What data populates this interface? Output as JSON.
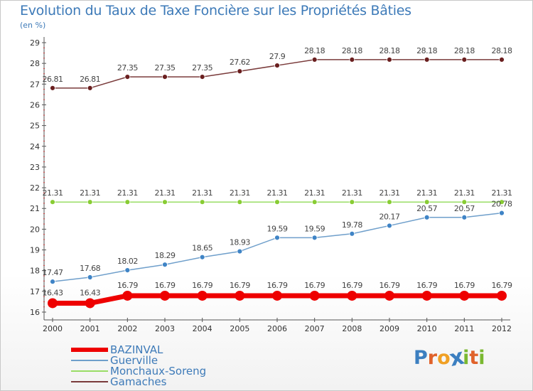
{
  "title": "Evolution du Taux de Taxe Foncière sur les Propriétés Bâties",
  "unit_label": "(en %)",
  "logo": {
    "text": "Proxiti",
    "letter_colors": [
      "#3c7fc0",
      "#e0622a",
      "#f0a024",
      "#3c7fc0",
      "#7ab830",
      "#e0622a",
      "#7ab830"
    ]
  },
  "colors": {
    "axis": "#555555",
    "grid_tick": "#d04040",
    "tick_label": "#333333",
    "value_label": "#444444",
    "legend_text": "#3d7ab8"
  },
  "chart_data": {
    "type": "line",
    "title": "Evolution du Taux de Taxe Foncière sur les Propriétés Bâties",
    "ylabel": "(en %)",
    "xlabel": "",
    "x": [
      "2000",
      "2001",
      "2002",
      "2003",
      "2004",
      "2005",
      "2006",
      "2007",
      "2008",
      "2009",
      "2010",
      "2011",
      "2012"
    ],
    "ylim": [
      16,
      29
    ],
    "yticks": [
      16,
      17,
      18,
      19,
      20,
      21,
      22,
      23,
      24,
      25,
      26,
      27,
      28,
      29
    ],
    "grid": false,
    "legend_position": "bottom-left",
    "series": [
      {
        "name": "BAZINVAL",
        "color": "#ee0000",
        "marker_fill": "#ee0000",
        "bold": true,
        "values": [
          16.43,
          16.43,
          16.79,
          16.79,
          16.79,
          16.79,
          16.79,
          16.79,
          16.79,
          16.79,
          16.79,
          16.79,
          16.79
        ],
        "labels": [
          "16.43",
          "16.43",
          "16.79",
          "16.79",
          "16.79",
          "16.79",
          "16.79",
          "16.79",
          "16.79",
          "16.79",
          "16.79",
          "16.79",
          "16.79"
        ]
      },
      {
        "name": "Guerville",
        "color": "#6f9fcb",
        "marker_fill": "#3f84c6",
        "bold": false,
        "values": [
          17.47,
          17.68,
          18.02,
          18.29,
          18.65,
          18.93,
          19.59,
          19.59,
          19.78,
          20.17,
          20.57,
          20.57,
          20.78
        ],
        "labels": [
          "17.47",
          "17.68",
          "18.02",
          "18.29",
          "18.65",
          "18.93",
          "19.59",
          "19.59",
          "19.78",
          "20.17",
          "20.57",
          "20.57",
          "20.78"
        ]
      },
      {
        "name": "Monchaux-Soreng",
        "color": "#99dd66",
        "marker_fill": "#88cc33",
        "bold": false,
        "values": [
          21.31,
          21.31,
          21.31,
          21.31,
          21.31,
          21.31,
          21.31,
          21.31,
          21.31,
          21.31,
          21.31,
          21.31,
          21.31
        ],
        "labels": [
          "21.31",
          "21.31",
          "21.31",
          "21.31",
          "21.31",
          "21.31",
          "21.31",
          "21.31",
          "21.31",
          "21.31",
          "21.31",
          "21.31",
          "21.31"
        ]
      },
      {
        "name": "Gamaches",
        "color": "#7a3b3b",
        "marker_fill": "#6a1f1f",
        "bold": false,
        "values": [
          26.81,
          26.81,
          27.35,
          27.35,
          27.35,
          27.62,
          27.9,
          28.18,
          28.18,
          28.18,
          28.18,
          28.18,
          28.18
        ],
        "labels": [
          "26.81",
          "26.81",
          "27.35",
          "27.35",
          "27.35",
          "27.62",
          "27.9",
          "28.18",
          "28.18",
          "28.18",
          "28.18",
          "28.18",
          "28.18"
        ]
      }
    ]
  }
}
